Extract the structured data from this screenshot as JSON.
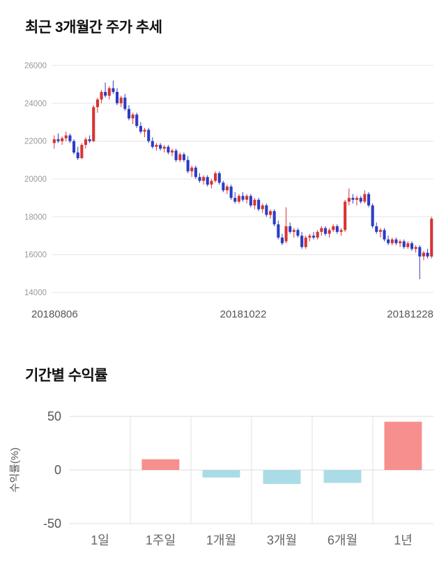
{
  "page": {
    "background": "#ffffff"
  },
  "price_section": {
    "title": "최근 3개월간 주가 추세"
  },
  "returns_section": {
    "title": "기간별 수익률"
  },
  "chart_data": [
    {
      "type": "candlestick",
      "title": "최근 3개월간 주가 추세",
      "ylim": [
        14000,
        26000
      ],
      "yticks": [
        26000,
        24000,
        22000,
        20000,
        18000,
        16000,
        14000
      ],
      "xticks": [
        "20180806",
        "20181022",
        "20181228"
      ],
      "up_color": "#d63434",
      "down_color": "#2b3cc4",
      "grid": true,
      "candles": [
        [
          21900,
          22300,
          21600,
          22100
        ],
        [
          22100,
          22400,
          21900,
          22000
        ],
        [
          22000,
          22250,
          21800,
          22150
        ],
        [
          22150,
          22500,
          22000,
          22300
        ],
        [
          22300,
          22400,
          21900,
          22000
        ],
        [
          22000,
          22100,
          21300,
          21400
        ],
        [
          21400,
          21700,
          21000,
          21100
        ],
        [
          21100,
          21900,
          21050,
          21800
        ],
        [
          21800,
          22200,
          21600,
          22100
        ],
        [
          22100,
          22300,
          21900,
          22000
        ],
        [
          22000,
          23900,
          21950,
          23800
        ],
        [
          23800,
          24300,
          23500,
          24200
        ],
        [
          24200,
          24700,
          24000,
          24600
        ],
        [
          24600,
          25100,
          24300,
          24400
        ],
        [
          24400,
          24900,
          24200,
          24800
        ],
        [
          24800,
          25200,
          24500,
          24600
        ],
        [
          24600,
          24800,
          23900,
          24000
        ],
        [
          24000,
          24400,
          23800,
          24300
        ],
        [
          24300,
          24500,
          23600,
          23700
        ],
        [
          23700,
          23900,
          23100,
          23200
        ],
        [
          23200,
          23500,
          22900,
          23400
        ],
        [
          23400,
          23500,
          22700,
          22800
        ],
        [
          22800,
          23000,
          22400,
          22500
        ],
        [
          22500,
          22700,
          22200,
          22600
        ],
        [
          22600,
          22700,
          21900,
          22000
        ],
        [
          22000,
          22200,
          21600,
          21700
        ],
        [
          21700,
          21900,
          21500,
          21800
        ],
        [
          21800,
          21900,
          21500,
          21600
        ],
        [
          21600,
          21800,
          21400,
          21700
        ],
        [
          21700,
          21800,
          21300,
          21400
        ],
        [
          21400,
          21600,
          21200,
          21500
        ],
        [
          21500,
          21600,
          20900,
          21000
        ],
        [
          21000,
          21400,
          20900,
          21300
        ],
        [
          21300,
          21400,
          20900,
          21000
        ],
        [
          21000,
          21200,
          20300,
          20400
        ],
        [
          20400,
          20700,
          20100,
          20600
        ],
        [
          20600,
          20700,
          20000,
          20100
        ],
        [
          20100,
          20300,
          19800,
          19900
        ],
        [
          19900,
          20200,
          19700,
          20100
        ],
        [
          20100,
          20200,
          19600,
          19700
        ],
        [
          19700,
          20000,
          19500,
          19900
        ],
        [
          19900,
          20400,
          19800,
          20300
        ],
        [
          20300,
          20400,
          19700,
          19800
        ],
        [
          19800,
          19900,
          19300,
          19400
        ],
        [
          19400,
          19700,
          19200,
          19600
        ],
        [
          19600,
          19700,
          18900,
          19000
        ],
        [
          19000,
          19300,
          18700,
          18800
        ],
        [
          18800,
          19200,
          18700,
          19100
        ],
        [
          19100,
          19300,
          18800,
          18900
        ],
        [
          18900,
          19200,
          18700,
          19100
        ],
        [
          19100,
          19200,
          18500,
          18600
        ],
        [
          18600,
          19000,
          18400,
          18900
        ],
        [
          18900,
          19000,
          18300,
          18400
        ],
        [
          18400,
          18700,
          18200,
          18600
        ],
        [
          18600,
          18700,
          18000,
          18100
        ],
        [
          18100,
          18400,
          17900,
          18300
        ],
        [
          18300,
          18400,
          17500,
          17600
        ],
        [
          17600,
          17800,
          16800,
          16900
        ],
        [
          16900,
          17100,
          16500,
          16600
        ],
        [
          16700,
          18500,
          16600,
          17500
        ],
        [
          17500,
          17700,
          17100,
          17200
        ],
        [
          17200,
          17400,
          16900,
          17300
        ],
        [
          17300,
          17400,
          16900,
          17000
        ],
        [
          17000,
          17200,
          16300,
          16400
        ],
        [
          16400,
          17000,
          16300,
          16900
        ],
        [
          16900,
          17100,
          16700,
          17000
        ],
        [
          17000,
          17200,
          16800,
          16900
        ],
        [
          16900,
          17300,
          16800,
          17200
        ],
        [
          17200,
          17500,
          17000,
          17400
        ],
        [
          17400,
          17500,
          17000,
          17100
        ],
        [
          17100,
          17400,
          16900,
          17300
        ],
        [
          17300,
          17600,
          17200,
          17500
        ],
        [
          17500,
          17600,
          17100,
          17200
        ],
        [
          17200,
          17400,
          17000,
          17300
        ],
        [
          17300,
          18900,
          17200,
          18800
        ],
        [
          18800,
          19500,
          18600,
          19000
        ],
        [
          19000,
          19200,
          18700,
          18900
        ],
        [
          18900,
          19100,
          18600,
          19000
        ],
        [
          19000,
          19100,
          18700,
          18800
        ],
        [
          18800,
          19400,
          18700,
          19200
        ],
        [
          19200,
          19300,
          18500,
          18600
        ],
        [
          18600,
          18700,
          17400,
          17500
        ],
        [
          17500,
          17700,
          17100,
          17200
        ],
        [
          17200,
          17400,
          16900,
          17300
        ],
        [
          17300,
          17400,
          16700,
          16800
        ],
        [
          16800,
          17000,
          16500,
          16600
        ],
        [
          16600,
          16900,
          16500,
          16800
        ],
        [
          16800,
          16900,
          16500,
          16600
        ],
        [
          16600,
          16800,
          16400,
          16700
        ],
        [
          16700,
          16800,
          16300,
          16400
        ],
        [
          16400,
          16700,
          16300,
          16600
        ],
        [
          16600,
          16700,
          16200,
          16300
        ],
        [
          16300,
          16500,
          16100,
          16400
        ],
        [
          16400,
          16500,
          14700,
          15900
        ],
        [
          15900,
          16200,
          15700,
          16100
        ],
        [
          16100,
          16300,
          15800,
          15900
        ],
        [
          15900,
          18000,
          15800,
          17900
        ]
      ]
    },
    {
      "type": "bar",
      "title": "기간별 수익률",
      "categories": [
        "1일",
        "1주일",
        "1개월",
        "3개월",
        "6개월",
        "1년"
      ],
      "values": [
        0,
        10,
        -7,
        -13,
        -12,
        45
      ],
      "ylabel": "수익률(%)",
      "yticks": [
        50,
        0,
        -50
      ],
      "ylim": [
        -50,
        50
      ],
      "positive_color": "#f78f8f",
      "negative_color": "#a9dce6",
      "grid": true,
      "legend": false
    }
  ]
}
